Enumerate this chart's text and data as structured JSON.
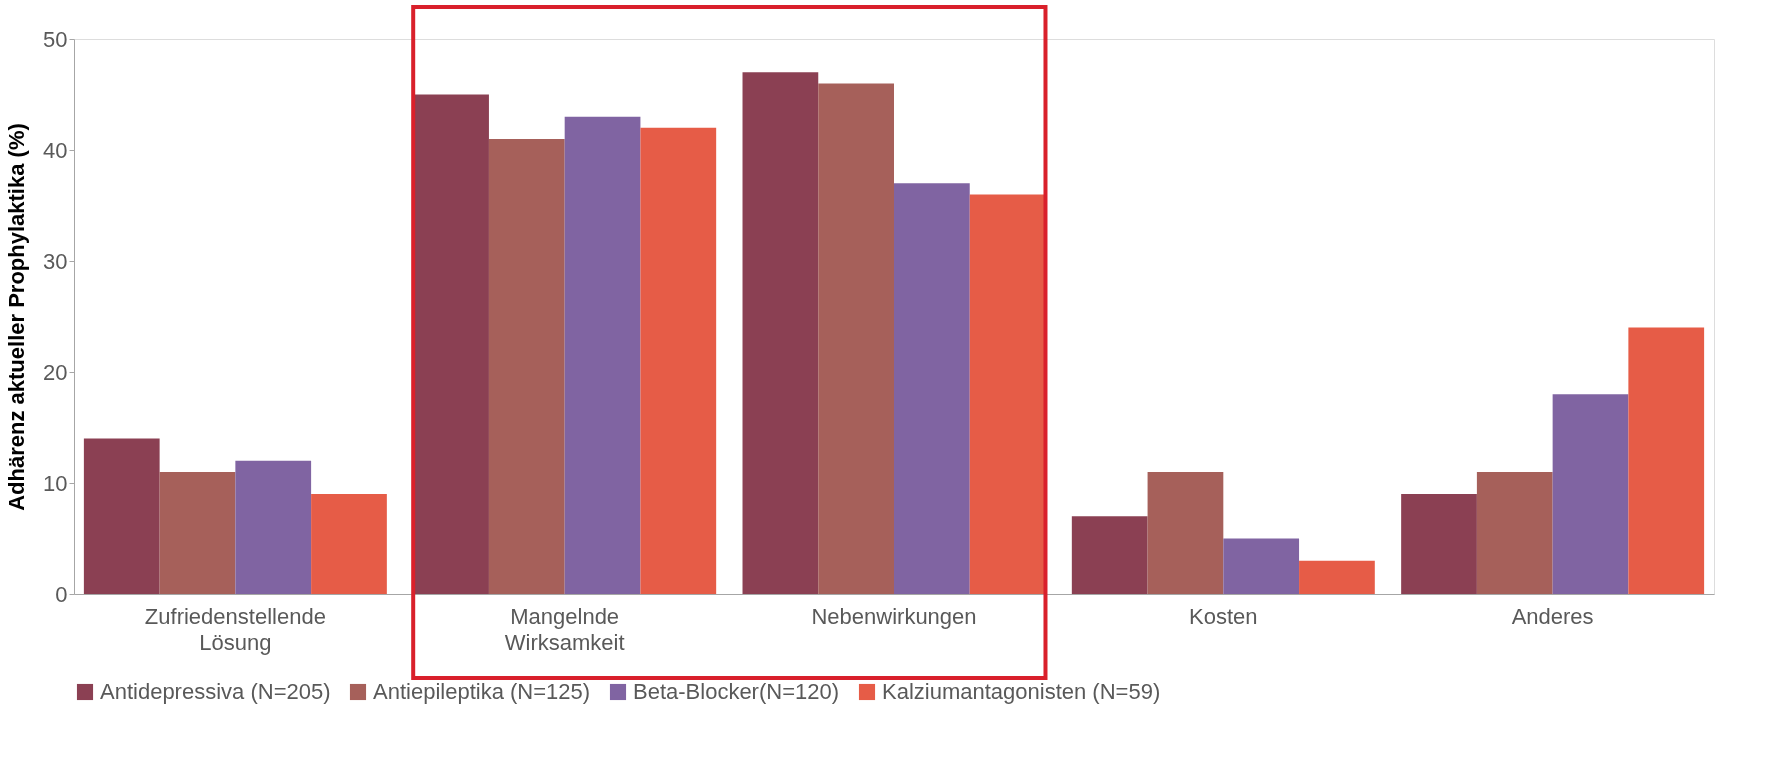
{
  "chart_data": {
    "type": "bar",
    "ylabel": "Adhärenz aktueller Prophylaktika (%)",
    "categories": [
      "Zufriedenstellende Lösung",
      "Mangelnde Wirksamkeit",
      "Nebenwirkungen",
      "Kosten",
      "Anderes"
    ],
    "series": [
      {
        "name": "Antidepressiva (N=205)",
        "color": "#8b4053",
        "values": [
          14,
          45,
          47,
          7,
          9
        ]
      },
      {
        "name": "Antiepileptika (N=125)",
        "color": "#a6605a",
        "values": [
          11,
          41,
          46,
          11,
          11
        ]
      },
      {
        "name": "Beta-Blocker(N=120)",
        "color": "#8064a2",
        "values": [
          12,
          43,
          37,
          5,
          18
        ]
      },
      {
        "name": "Kalziumantagonisten (N=59)",
        "color": "#e65c47",
        "values": [
          9,
          42,
          36,
          3,
          24
        ]
      }
    ],
    "ylim": [
      0,
      50
    ],
    "yticks": [
      0,
      10,
      20,
      30,
      40,
      50
    ],
    "grid": false,
    "legend": "bottom"
  }
}
